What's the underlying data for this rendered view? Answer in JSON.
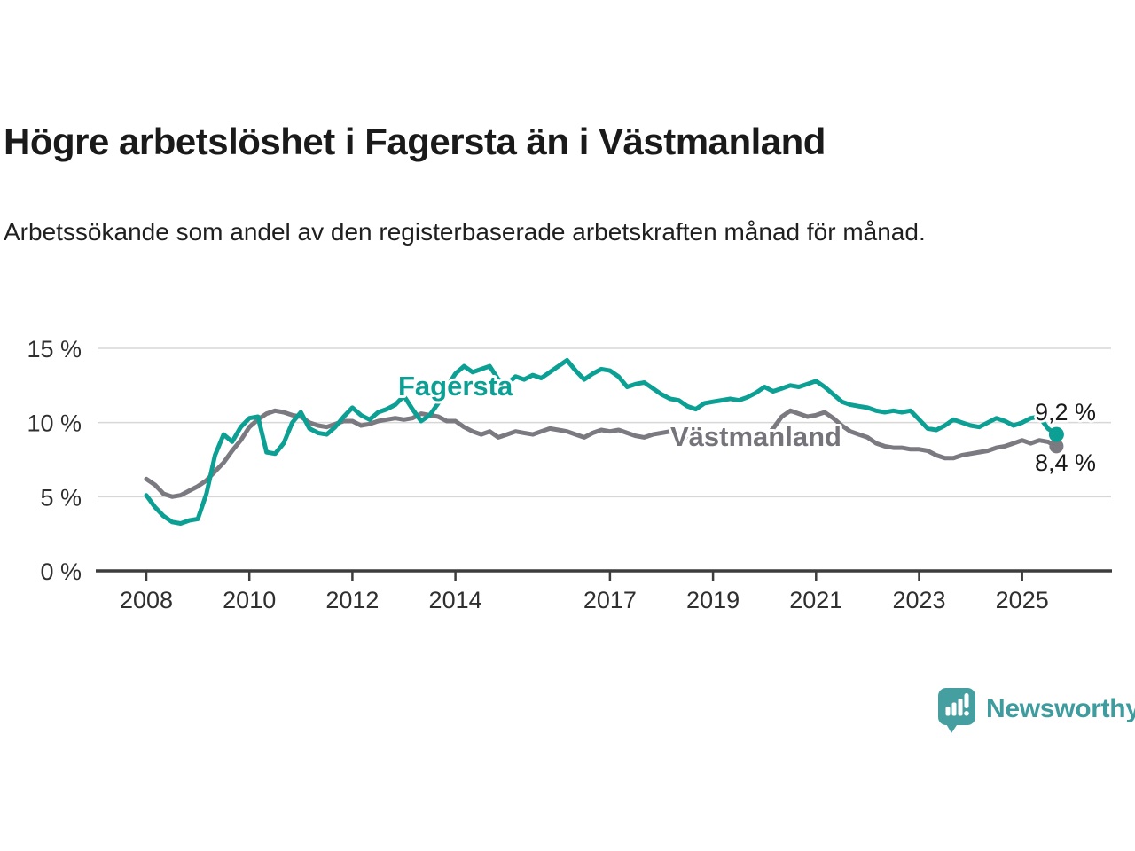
{
  "chart_data": {
    "type": "line",
    "title": "Högre arbetslöshet i Fagersta än i Västmanland",
    "subtitle": "Arbetssökande som andel av den registerbaserade arbetskraften månad för månad.",
    "unit": "%",
    "grid": true,
    "x_start": 2008,
    "x_step_years": 0.1666667,
    "x_axis": {
      "tick_years": [
        2008,
        2010,
        2012,
        2014,
        2017,
        2019,
        2021,
        2023,
        2025
      ],
      "tick_labels": [
        "2008",
        "2010",
        "2012",
        "2014",
        "2017",
        "2019",
        "2021",
        "2023",
        "2025"
      ]
    },
    "y_axis": {
      "min": 0,
      "max": 15.8,
      "ticks": [
        0,
        5,
        10,
        15
      ],
      "tick_labels": [
        "0 %",
        "5 %",
        "10 %",
        "15 %"
      ]
    },
    "series": [
      {
        "name": "Fagersta",
        "color": "#0CA094",
        "label_color": "#0CA094",
        "end_label": "9,2 %",
        "last_value": 9.2,
        "values": [
          5.1,
          4.3,
          3.7,
          3.3,
          3.2,
          3.4,
          3.5,
          5.2,
          7.8,
          9.2,
          8.7,
          9.7,
          10.3,
          10.4,
          8.0,
          7.9,
          8.6,
          10.0,
          10.7,
          9.6,
          9.3,
          9.2,
          9.7,
          10.4,
          11.0,
          10.5,
          10.2,
          10.7,
          10.9,
          11.2,
          11.8,
          10.9,
          10.1,
          10.5,
          11.3,
          12.4,
          13.3,
          13.8,
          13.4,
          13.6,
          13.8,
          12.9,
          12.6,
          13.1,
          12.9,
          13.2,
          13.0,
          13.4,
          13.8,
          14.2,
          13.5,
          12.9,
          13.3,
          13.6,
          13.5,
          13.1,
          12.4,
          12.6,
          12.7,
          12.3,
          11.9,
          11.6,
          11.5,
          11.1,
          10.9,
          11.3,
          11.4,
          11.5,
          11.6,
          11.5,
          11.7,
          12.0,
          12.4,
          12.1,
          12.3,
          12.5,
          12.4,
          12.6,
          12.8,
          12.4,
          11.9,
          11.4,
          11.2,
          11.1,
          11.0,
          10.8,
          10.7,
          10.8,
          10.7,
          10.8,
          10.2,
          9.6,
          9.5,
          9.8,
          10.2,
          10.0,
          9.8,
          9.7,
          10.0,
          10.3,
          10.1,
          9.8,
          10.0,
          10.3,
          10.4,
          9.6,
          9.2
        ]
      },
      {
        "name": "Västmanland",
        "color": "#7A7A80",
        "label_color": "#74747A",
        "end_label": "8,4 %",
        "last_value": 8.4,
        "values": [
          6.2,
          5.8,
          5.2,
          5.0,
          5.1,
          5.4,
          5.7,
          6.1,
          6.7,
          7.3,
          8.1,
          8.8,
          9.7,
          10.2,
          10.6,
          10.8,
          10.7,
          10.5,
          10.4,
          10.0,
          9.8,
          9.7,
          9.9,
          10.1,
          10.1,
          9.8,
          9.9,
          10.1,
          10.2,
          10.3,
          10.2,
          10.3,
          10.6,
          10.5,
          10.4,
          10.1,
          10.1,
          9.7,
          9.4,
          9.2,
          9.4,
          9.0,
          9.2,
          9.4,
          9.3,
          9.2,
          9.4,
          9.6,
          9.5,
          9.4,
          9.2,
          9.0,
          9.3,
          9.5,
          9.4,
          9.5,
          9.3,
          9.1,
          9.0,
          9.2,
          9.3,
          9.4,
          9.2,
          9.0,
          8.9,
          9.0,
          9.1,
          9.2,
          9.0,
          8.9,
          9.0,
          9.1,
          9.0,
          9.6,
          10.4,
          10.8,
          10.6,
          10.4,
          10.5,
          10.7,
          10.3,
          9.8,
          9.4,
          9.2,
          9.0,
          8.6,
          8.4,
          8.3,
          8.3,
          8.2,
          8.2,
          8.1,
          7.8,
          7.6,
          7.6,
          7.8,
          7.9,
          8.0,
          8.1,
          8.3,
          8.4,
          8.6,
          8.8,
          8.6,
          8.8,
          8.7,
          8.4
        ]
      }
    ]
  },
  "branding": {
    "logo_text": "Newsworthy",
    "logo_text_color": "#3E9C9E",
    "logo_icon_color": "#459FA1"
  },
  "colors": {
    "background": "#FFFFFF",
    "gridline": "#D7D7D7",
    "axis": "#3D3D3D",
    "axis_text": "#2F2F2F",
    "value_label_text": "#1A1A1A"
  }
}
